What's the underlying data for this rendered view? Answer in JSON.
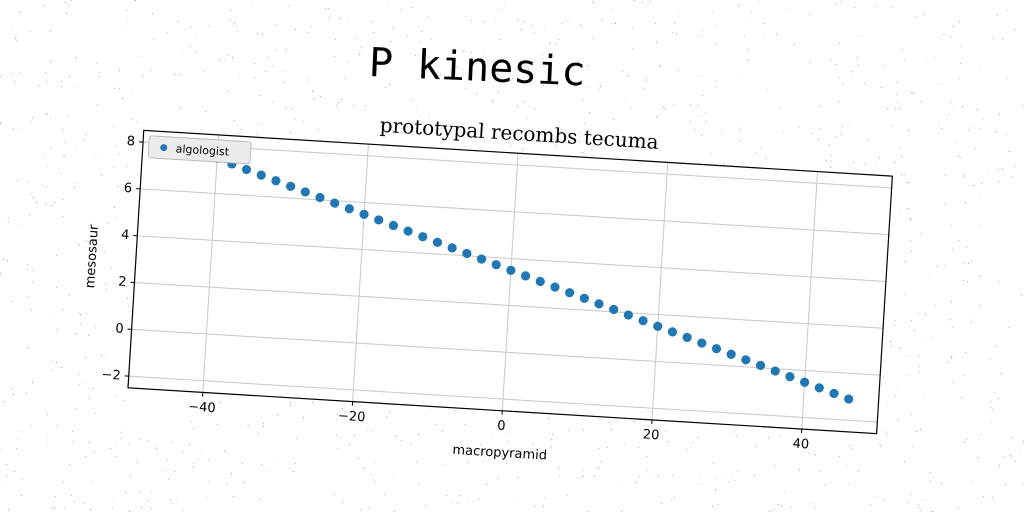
{
  "page": {
    "title": "P kinesic"
  },
  "chart_data": {
    "type": "scatter",
    "title": "prototypal recombs tecuma",
    "xlabel": "macropyramid",
    "ylabel": "mesosaur",
    "xlim": [
      -50,
      50
    ],
    "ylim": [
      -2.5,
      8.5
    ],
    "xticks": [
      -40,
      -20,
      0,
      20,
      40
    ],
    "yticks": [
      -2,
      0,
      2,
      4,
      6,
      8
    ],
    "xtick_labels": [
      "−40",
      "−20",
      "0",
      "20",
      "40"
    ],
    "ytick_labels": [
      "−2",
      "0",
      "2",
      "4",
      "6",
      "8"
    ],
    "grid": true,
    "legend_position": "top-left",
    "series": [
      {
        "name": "algologist",
        "color": "#1f77b4",
        "x": [
          -46,
          -44,
          -42,
          -40,
          -38,
          -36,
          -34,
          -32,
          -30,
          -28,
          -26,
          -24,
          -22,
          -20,
          -18,
          -16,
          -14,
          -12,
          -10,
          -8,
          -6,
          -4,
          -2,
          0,
          2,
          4,
          6,
          8,
          10,
          12,
          14,
          16,
          18,
          20,
          22,
          24,
          26,
          28,
          30,
          32,
          34,
          36,
          38,
          40,
          42,
          44,
          46
        ],
        "y": [
          8.1,
          7.9,
          7.7,
          7.5,
          7.3,
          7.1,
          6.9,
          6.7,
          6.5,
          6.3,
          6.1,
          5.9,
          5.7,
          5.5,
          5.3,
          5.1,
          4.9,
          4.7,
          4.5,
          4.3,
          4.1,
          3.9,
          3.7,
          3.5,
          3.3,
          3.1,
          2.9,
          2.7,
          2.5,
          2.3,
          2.1,
          1.9,
          1.7,
          1.5,
          1.3,
          1.1,
          0.9,
          0.7,
          0.5,
          0.3,
          0.1,
          -0.1,
          -0.3,
          -0.5,
          -0.7,
          -0.9,
          -1.1
        ]
      }
    ]
  }
}
